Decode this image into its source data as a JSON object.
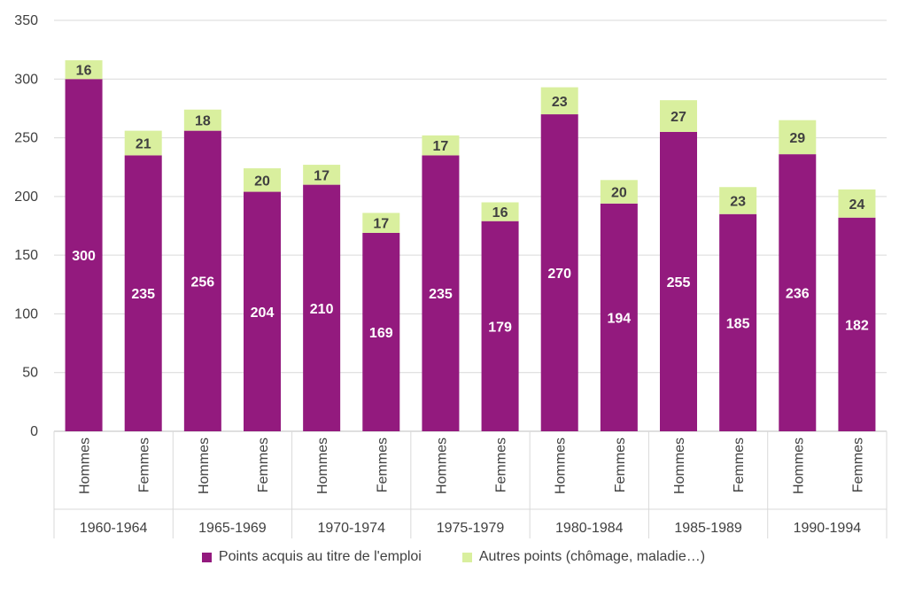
{
  "chart_data": {
    "type": "bar",
    "stacked": true,
    "groups": [
      "1960-1964",
      "1965-1969",
      "1970-1974",
      "1975-1979",
      "1980-1984",
      "1985-1989",
      "1990-1994"
    ],
    "subcategories": [
      "Hommes",
      "Femmes"
    ],
    "series": [
      {
        "name": "Points acquis au titre de l'emploi",
        "color": "#931A7E",
        "values": [
          300,
          235,
          256,
          204,
          210,
          169,
          235,
          179,
          270,
          194,
          255,
          185,
          236,
          182
        ]
      },
      {
        "name": "Autres points (chômage, maladie…)",
        "color": "#D9EF9E",
        "values": [
          16,
          21,
          18,
          20,
          17,
          17,
          17,
          16,
          23,
          20,
          27,
          23,
          29,
          24
        ]
      }
    ],
    "ylim": [
      0,
      350
    ],
    "yticks": [
      0,
      50,
      100,
      150,
      200,
      250,
      300,
      350
    ],
    "grid": true,
    "legend_position": "bottom"
  }
}
